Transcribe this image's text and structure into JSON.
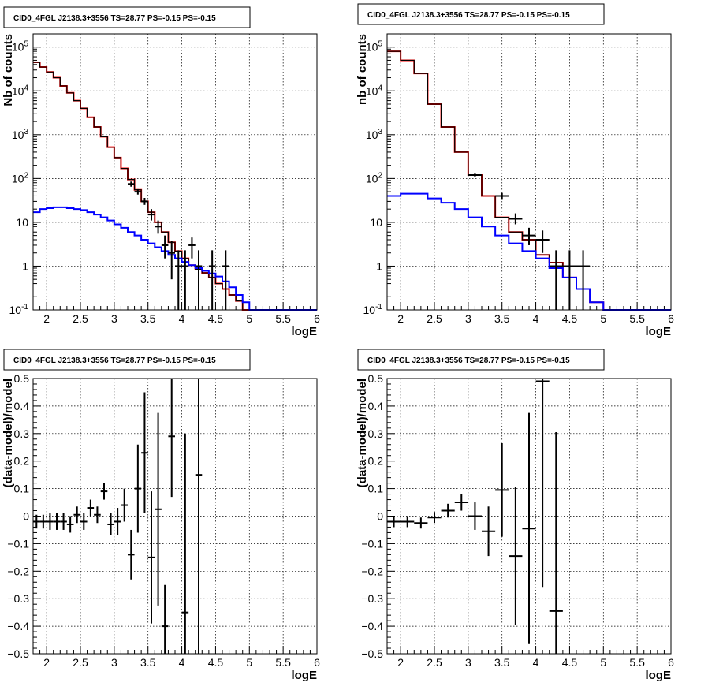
{
  "chart_data": [
    {
      "type": "line",
      "title": "CID0_4FGL J2138.3+3556 TS=28.77 PS=-0.15 PS=-0.15",
      "xlabel": "logE",
      "ylabel": "Nb of counts",
      "xlim": [
        1.8,
        6.0
      ],
      "ylim": [
        0.1,
        200000
      ],
      "yscale": "log",
      "grid": true,
      "x_ticks": [
        "2",
        "2.5",
        "3",
        "3.5",
        "4",
        "4.5",
        "5",
        "5.5",
        "6"
      ],
      "y_ticks": [
        "10^-1",
        "1",
        "10",
        "10^2",
        "10^3",
        "10^4",
        "10^5"
      ],
      "bin_edges": [
        1.8,
        1.9,
        2.0,
        2.1,
        2.2,
        2.3,
        2.4,
        2.5,
        2.6,
        2.7,
        2.8,
        2.9,
        3.0,
        3.1,
        3.2,
        3.3,
        3.4,
        3.5,
        3.6,
        3.7,
        3.8,
        3.9,
        4.0,
        4.1,
        4.2,
        4.3,
        4.4,
        4.5,
        4.6,
        4.7,
        4.8,
        4.9,
        5.0,
        5.1,
        5.2,
        5.3,
        5.4,
        5.5,
        5.6,
        5.7,
        5.8,
        5.9,
        6.0
      ],
      "series": [
        {
          "role": "total model",
          "color": "#ff0000",
          "values": [
            45000,
            35000,
            27000,
            20000,
            13000,
            9000,
            6000,
            4000,
            2500,
            1500,
            900,
            520,
            300,
            170,
            95,
            55,
            30,
            17,
            10,
            6,
            3.5,
            2.2,
            1.5,
            1.05,
            0.85,
            0.7,
            0.55,
            0.4,
            0.3,
            0.22,
            0.16,
            0.1,
            0.1,
            0.1,
            0.1,
            0.1,
            0.1,
            0.1,
            0.1,
            0.1,
            0.1,
            0.1
          ]
        },
        {
          "role": "component model",
          "color": "#000000",
          "values": [
            45000,
            35000,
            27000,
            20000,
            13000,
            9000,
            6000,
            4000,
            2500,
            1500,
            900,
            520,
            300,
            170,
            95,
            55,
            30,
            17,
            10,
            6,
            3.5,
            2.2,
            1.5,
            1.05,
            0.85,
            0.7,
            0.55,
            0.4,
            0.3,
            0.22,
            0.16,
            0.1,
            0.1,
            0.1,
            0.1,
            0.1,
            0.1,
            0.1,
            0.1,
            0.1,
            0.1,
            0.1
          ]
        },
        {
          "role": "component model",
          "color": "#0000ff",
          "values": [
            17,
            20,
            21,
            22,
            22,
            21,
            20,
            19,
            17,
            15,
            13,
            11,
            9,
            7.5,
            6,
            5,
            4,
            3.3,
            2.7,
            2.2,
            1.8,
            1.5,
            1.25,
            1.05,
            0.9,
            0.78,
            0.68,
            0.58,
            0.45,
            0.33,
            0.22,
            0.15,
            0.1,
            0.1,
            0.1,
            0.1,
            0.1,
            0.1,
            0.1,
            0.1,
            0.1,
            0.1
          ]
        }
      ],
      "data_points": [
        {
          "x": 3.25,
          "y": 75,
          "ylo": 65,
          "yhi": 85,
          "xerr": 0.05
        },
        {
          "x": 3.35,
          "y": 50,
          "ylo": 43,
          "yhi": 57,
          "xerr": 0.05
        },
        {
          "x": 3.45,
          "y": 30,
          "ylo": 25,
          "yhi": 36,
          "xerr": 0.05
        },
        {
          "x": 3.55,
          "y": 15,
          "ylo": 11,
          "yhi": 20,
          "xerr": 0.05
        },
        {
          "x": 3.65,
          "y": 8,
          "ylo": 5.5,
          "yhi": 11,
          "xerr": 0.05
        },
        {
          "x": 3.75,
          "y": 3,
          "ylo": 1.5,
          "yhi": 5,
          "xerr": 0.05
        },
        {
          "x": 3.85,
          "y": 2,
          "ylo": 0.5,
          "yhi": 3.8,
          "xerr": 0.05
        },
        {
          "x": 3.95,
          "y": 1,
          "ylo": 0.1,
          "yhi": 2.3,
          "xerr": 0.05
        },
        {
          "x": 4.05,
          "y": 1,
          "ylo": 0.1,
          "yhi": 2.3,
          "xerr": 0.05
        },
        {
          "x": 4.15,
          "y": 3,
          "ylo": 1.5,
          "yhi": 4.5,
          "xerr": 0.05
        },
        {
          "x": 4.25,
          "y": 1,
          "ylo": 0.1,
          "yhi": 2.3,
          "xerr": 0.05
        },
        {
          "x": 4.45,
          "y": 1,
          "ylo": 0.1,
          "yhi": 2.3,
          "xerr": 0.05
        },
        {
          "x": 4.65,
          "y": 1,
          "ylo": 0.1,
          "yhi": 2.3,
          "xerr": 0.05
        }
      ]
    },
    {
      "type": "line",
      "title": "CID0_4FGL J2138.3+3556 TS=28.77 PS=-0.15 PS=-0.15",
      "xlabel": "logE",
      "ylabel": "nb of counts",
      "xlim": [
        1.8,
        6.0
      ],
      "ylim": [
        0.1,
        200000
      ],
      "yscale": "log",
      "grid": true,
      "x_ticks": [
        "2",
        "2.5",
        "3",
        "3.5",
        "4",
        "4.5",
        "5",
        "5.5",
        "6"
      ],
      "y_ticks": [
        "10^-1",
        "1",
        "10",
        "10^2",
        "10^3",
        "10^4",
        "10^5"
      ],
      "bin_edges": [
        1.8,
        2.0,
        2.2,
        2.4,
        2.6,
        2.8,
        3.0,
        3.2,
        3.4,
        3.6,
        3.8,
        4.0,
        4.2,
        4.4,
        4.6,
        4.8,
        5.0,
        5.2,
        5.4,
        5.6,
        5.8,
        6.0
      ],
      "series": [
        {
          "role": "total model",
          "color": "#ff0000",
          "values": [
            80000,
            50000,
            25000,
            5000,
            1500,
            400,
            120,
            40,
            13,
            6,
            4,
            1.8,
            1.2,
            0.55,
            0.3,
            0.15,
            0.1,
            0.1,
            0.1,
            0.1,
            0.1
          ]
        },
        {
          "role": "component model",
          "color": "#000000",
          "values": [
            80000,
            50000,
            25000,
            5000,
            1500,
            400,
            120,
            40,
            13,
            6,
            4,
            1.8,
            1.2,
            0.55,
            0.3,
            0.15,
            0.1,
            0.1,
            0.1,
            0.1,
            0.1
          ]
        },
        {
          "role": "component model",
          "color": "#0000ff",
          "values": [
            40,
            45,
            45,
            35,
            28,
            20,
            13,
            8,
            5,
            3.3,
            2.2,
            1.5,
            0.9,
            0.55,
            0.3,
            0.15,
            0.1,
            0.1,
            0.1,
            0.1,
            0.1
          ]
        }
      ],
      "data_points": [
        {
          "x": 3.1,
          "y": 120,
          "ylo": 110,
          "yhi": 130,
          "xerr": 0.1
        },
        {
          "x": 3.5,
          "y": 40,
          "ylo": 34,
          "yhi": 47,
          "xerr": 0.1
        },
        {
          "x": 3.7,
          "y": 12,
          "ylo": 9,
          "yhi": 16,
          "xerr": 0.1
        },
        {
          "x": 3.9,
          "y": 5,
          "ylo": 3,
          "yhi": 7.5,
          "xerr": 0.1
        },
        {
          "x": 4.1,
          "y": 4,
          "ylo": 2,
          "yhi": 6.5,
          "xerr": 0.1
        },
        {
          "x": 4.3,
          "y": 1,
          "ylo": 0.1,
          "yhi": 2.3,
          "xerr": 0.1
        },
        {
          "x": 4.5,
          "y": 1,
          "ylo": 0.1,
          "yhi": 2.3,
          "xerr": 0.1
        },
        {
          "x": 4.7,
          "y": 1,
          "ylo": 0.1,
          "yhi": 2.3,
          "xerr": 0.1
        }
      ]
    },
    {
      "type": "scatter",
      "title": "CID0_4FGL J2138.3+3556 TS=28.77 PS=-0.15 PS=-0.15",
      "xlabel": "logE",
      "ylabel": "(data-model)/model",
      "xlim": [
        1.8,
        6.0
      ],
      "ylim": [
        -0.5,
        0.5
      ],
      "grid": true,
      "x_ticks": [
        "2",
        "2.5",
        "3",
        "3.5",
        "4",
        "4.5",
        "5",
        "5.5",
        "6"
      ],
      "y_ticks": [
        "−0.5",
        "−0.4",
        "−0.3",
        "−0.2",
        "−0.1",
        "0",
        "0.1",
        "0.2",
        "0.3",
        "0.4",
        "0.5"
      ],
      "data_points": [
        {
          "x": 1.85,
          "y": -0.02,
          "yerr": 0.025,
          "xerr": 0.05
        },
        {
          "x": 1.95,
          "y": -0.02,
          "yerr": 0.025,
          "xerr": 0.05
        },
        {
          "x": 2.05,
          "y": -0.02,
          "yerr": 0.03,
          "xerr": 0.05
        },
        {
          "x": 2.15,
          "y": -0.02,
          "yerr": 0.03,
          "xerr": 0.05
        },
        {
          "x": 2.25,
          "y": -0.02,
          "yerr": 0.03,
          "xerr": 0.05
        },
        {
          "x": 2.35,
          "y": -0.03,
          "yerr": 0.03,
          "xerr": 0.05
        },
        {
          "x": 2.45,
          "y": 0.005,
          "yerr": 0.03,
          "xerr": 0.05
        },
        {
          "x": 2.55,
          "y": -0.02,
          "yerr": 0.03,
          "xerr": 0.05
        },
        {
          "x": 2.65,
          "y": 0.03,
          "yerr": 0.03,
          "xerr": 0.05
        },
        {
          "x": 2.75,
          "y": 0.005,
          "yerr": 0.03,
          "xerr": 0.05
        },
        {
          "x": 2.85,
          "y": 0.09,
          "yerr": 0.03,
          "xerr": 0.05
        },
        {
          "x": 2.95,
          "y": -0.03,
          "yerr": 0.04,
          "xerr": 0.05
        },
        {
          "x": 3.05,
          "y": -0.02,
          "yerr": 0.05,
          "xerr": 0.05
        },
        {
          "x": 3.15,
          "y": 0.04,
          "yerr": 0.06,
          "xerr": 0.05
        },
        {
          "x": 3.25,
          "y": -0.14,
          "yerr": 0.09,
          "xerr": 0.05
        },
        {
          "x": 3.35,
          "y": 0.1,
          "yerr": 0.16,
          "xerr": 0.05
        },
        {
          "x": 3.45,
          "y": 0.23,
          "yerr": 0.22,
          "xerr": 0.05
        },
        {
          "x": 3.55,
          "y": -0.15,
          "yerr": 0.24,
          "xerr": 0.05
        },
        {
          "x": 3.65,
          "y": 0.025,
          "yerr": 0.35,
          "xerr": 0.05
        },
        {
          "x": 3.75,
          "y": -0.4,
          "yerr": 0.15,
          "xerr": 0.05
        },
        {
          "x": 3.85,
          "y": 0.29,
          "yerr": 0.22,
          "xerr": 0.05
        },
        {
          "x": 4.05,
          "y": -0.35,
          "yerr": 0.65,
          "xerr": 0.05
        },
        {
          "x": 4.25,
          "y": 0.15,
          "yerr": 0.65,
          "xerr": 0.05
        }
      ]
    },
    {
      "type": "scatter",
      "title": "CID0_4FGL J2138.3+3556 TS=28.77 PS=-0.15 PS=-0.15",
      "xlabel": "logE",
      "ylabel": "(data-model)/model",
      "xlim": [
        1.8,
        6.0
      ],
      "ylim": [
        -0.5,
        0.5
      ],
      "grid": true,
      "x_ticks": [
        "2",
        "2.5",
        "3",
        "3.5",
        "4",
        "4.5",
        "5",
        "5.5",
        "6"
      ],
      "y_ticks": [
        "−0.5",
        "−0.4",
        "−0.3",
        "−0.2",
        "−0.1",
        "0",
        "0.1",
        "0.2",
        "0.3",
        "0.4",
        "0.5"
      ],
      "data_points": [
        {
          "x": 1.9,
          "y": -0.02,
          "yerr": 0.02,
          "xerr": 0.1
        },
        {
          "x": 2.1,
          "y": -0.02,
          "yerr": 0.02,
          "xerr": 0.1
        },
        {
          "x": 2.3,
          "y": -0.025,
          "yerr": 0.02,
          "xerr": 0.1
        },
        {
          "x": 2.5,
          "y": -0.005,
          "yerr": 0.02,
          "xerr": 0.1
        },
        {
          "x": 2.7,
          "y": 0.02,
          "yerr": 0.025,
          "xerr": 0.1
        },
        {
          "x": 2.9,
          "y": 0.05,
          "yerr": 0.03,
          "xerr": 0.1
        },
        {
          "x": 3.1,
          "y": 0.0,
          "yerr": 0.05,
          "xerr": 0.1
        },
        {
          "x": 3.3,
          "y": -0.055,
          "yerr": 0.09,
          "xerr": 0.1
        },
        {
          "x": 3.5,
          "y": 0.095,
          "yerr": 0.17,
          "xerr": 0.1
        },
        {
          "x": 3.7,
          "y": -0.145,
          "yerr": 0.25,
          "xerr": 0.1
        },
        {
          "x": 3.9,
          "y": -0.045,
          "yerr": 0.42,
          "xerr": 0.1
        },
        {
          "x": 4.1,
          "y": 0.49,
          "yerr": 0.75,
          "xerr": 0.1
        },
        {
          "x": 4.3,
          "y": -0.345,
          "yerr": 0.65,
          "xerr": 0.1
        }
      ]
    }
  ]
}
